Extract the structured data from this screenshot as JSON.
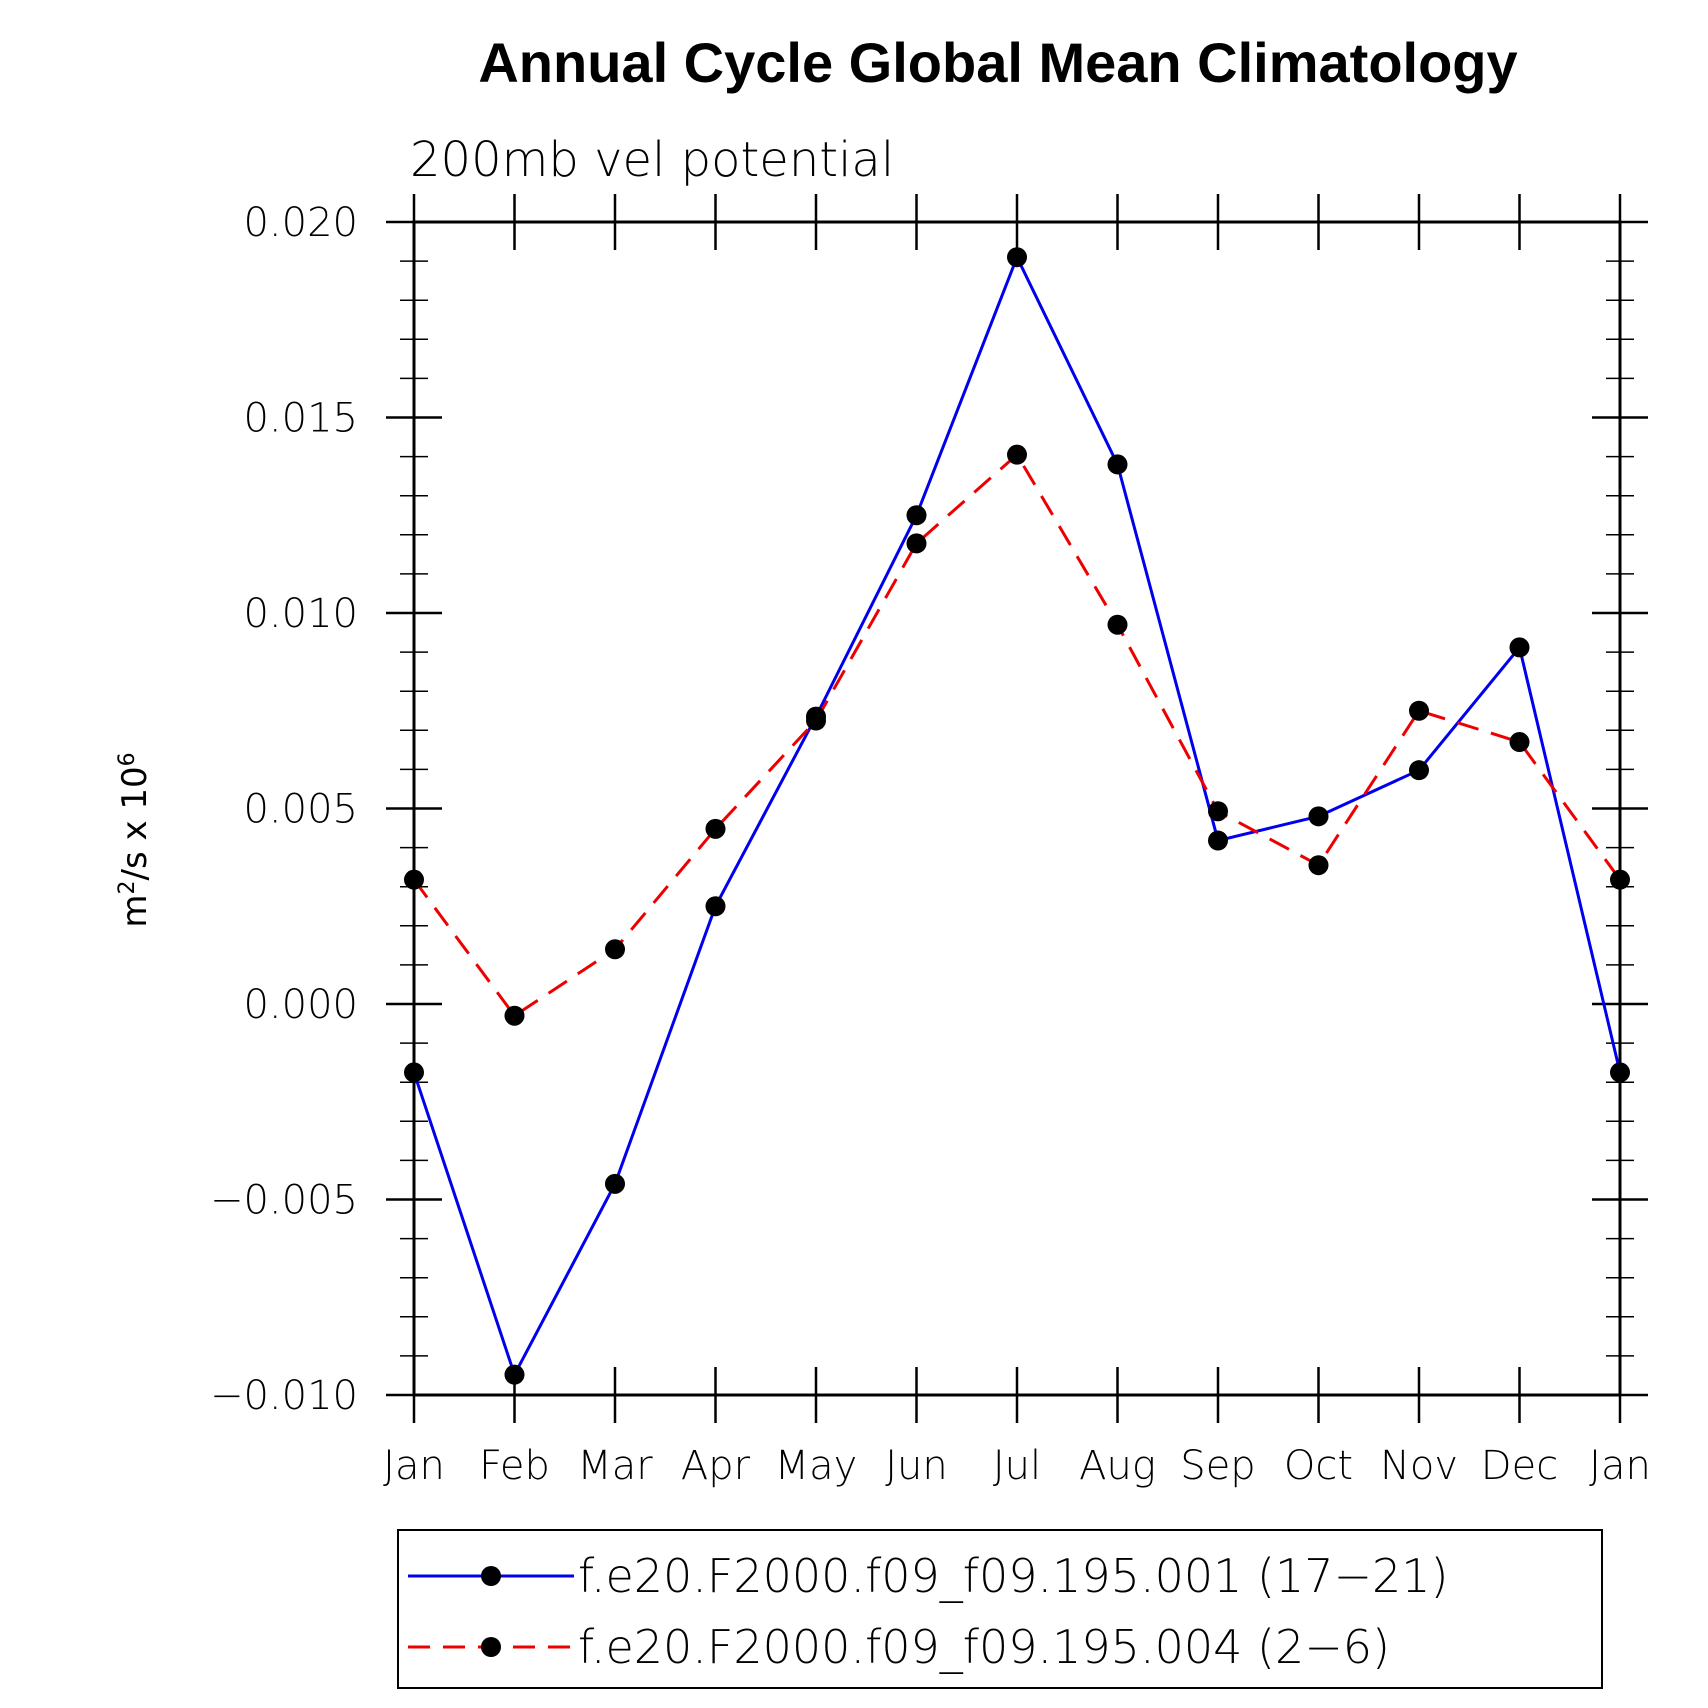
{
  "chart_data": {
    "type": "line",
    "title": "Annual Cycle Global Mean Climatology",
    "subtitle": "200mb vel potential",
    "ylabel_base": "m",
    "ylabel_sup1": "2",
    "ylabel_mid": "/s x 10",
    "ylabel_sup2": "6",
    "ylim": [
      -0.01,
      0.02
    ],
    "yticks": [
      -0.01,
      -0.005,
      0.0,
      0.005,
      0.01,
      0.015,
      0.02
    ],
    "ytick_labels": [
      "−0.010",
      "−0.005",
      "0.000",
      "0.005",
      "0.010",
      "0.015",
      "0.020"
    ],
    "categories": [
      "Jan",
      "Feb",
      "Mar",
      "Apr",
      "May",
      "Jun",
      "Jul",
      "Aug",
      "Sep",
      "Oct",
      "Nov",
      "Dec",
      "Jan"
    ],
    "series": [
      {
        "name": "f.e20.F2000.f09_f09.195.001 (17−21)",
        "color": "#0000ee",
        "style": "solid",
        "values": [
          -0.00175,
          -0.00948,
          -0.0046,
          0.0025,
          0.00735,
          0.0125,
          0.0191,
          0.0138,
          0.00418,
          0.0048,
          0.00598,
          0.00912,
          -0.00175
        ]
      },
      {
        "name": "f.e20.F2000.f09_f09.195.004 (2−6)",
        "color": "#ee0000",
        "style": "dashed",
        "values": [
          0.00318,
          -0.0003,
          0.0014,
          0.00448,
          0.00725,
          0.01178,
          0.01405,
          0.0097,
          0.00493,
          0.00355,
          0.0075,
          0.0067,
          0.00318
        ]
      }
    ],
    "legend_placement": "bottom"
  }
}
